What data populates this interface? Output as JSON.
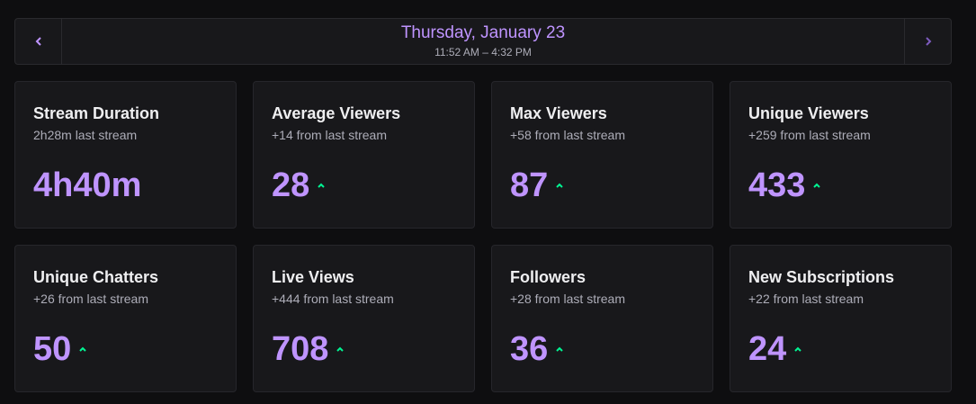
{
  "header": {
    "date": "Thursday, January 23",
    "time_range": "11:52 AM – 4:32 PM",
    "prev_icon": "chevron-left-icon",
    "next_icon": "chevron-right-icon"
  },
  "colors": {
    "accent": "#bf94ff",
    "trend_up": "#00f593",
    "card_bg": "#18181b",
    "page_bg": "#0e0e10"
  },
  "stats": [
    {
      "title": "Stream Duration",
      "sub": "2h28m last stream",
      "value": "4h40m",
      "trend": "none"
    },
    {
      "title": "Average Viewers",
      "sub": "+14 from last stream",
      "value": "28",
      "trend": "up"
    },
    {
      "title": "Max Viewers",
      "sub": "+58 from last stream",
      "value": "87",
      "trend": "up"
    },
    {
      "title": "Unique Viewers",
      "sub": "+259 from last stream",
      "value": "433",
      "trend": "up"
    },
    {
      "title": "Unique Chatters",
      "sub": "+26 from last stream",
      "value": "50",
      "trend": "up"
    },
    {
      "title": "Live Views",
      "sub": "+444 from last stream",
      "value": "708",
      "trend": "up"
    },
    {
      "title": "Followers",
      "sub": "+28 from last stream",
      "value": "36",
      "trend": "up"
    },
    {
      "title": "New Subscriptions",
      "sub": "+22 from last stream",
      "value": "24",
      "trend": "up"
    }
  ]
}
